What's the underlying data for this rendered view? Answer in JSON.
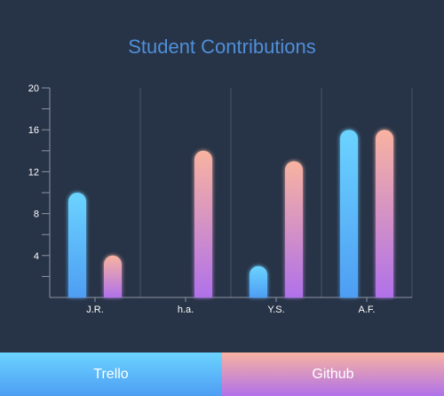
{
  "chart_data": {
    "type": "bar",
    "title": "Student Contributions",
    "categories": [
      "J.R.",
      "h.a.",
      "Y.S.",
      "A.F."
    ],
    "series": [
      {
        "name": "Trello",
        "values": [
          10,
          0,
          3,
          16
        ],
        "gradient": [
          "#6bd3ff",
          "#4e9ef3"
        ]
      },
      {
        "name": "Github",
        "values": [
          4,
          14,
          13,
          16
        ],
        "gradient": [
          "#f8b3a0",
          "#b071ea"
        ]
      }
    ],
    "ylim": [
      0,
      20
    ],
    "yticks": [
      4,
      8,
      12,
      16,
      20
    ],
    "grid": "vertical",
    "legend_placement": "bottom",
    "colors": {
      "background": "#273346",
      "title": "#4f8fd9",
      "axis": "#8c95a5"
    }
  }
}
